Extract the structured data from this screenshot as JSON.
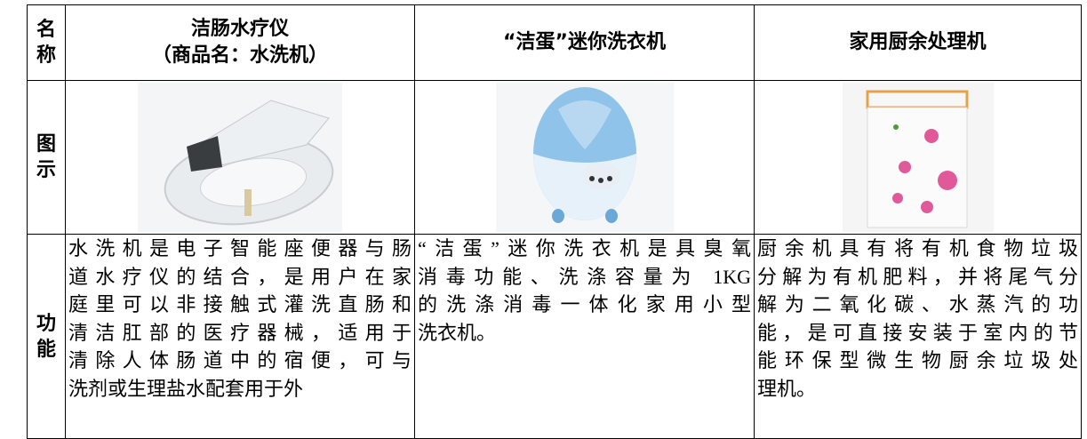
{
  "table": {
    "header": {
      "label": "名称",
      "columns": [
        [
          "洁肠水疗仪",
          "（商品名：水洗机）"
        ],
        [
          "“洁蛋”迷你洗衣机"
        ],
        [
          "家用厨余处理机"
        ]
      ]
    },
    "image_row": {
      "label": "图示"
    },
    "function_row": {
      "label": "功能",
      "cells": [
        [
          "水洗机是电子智能座便器与肠",
          "道水疗仪的结合，是用户在家",
          "庭里可以非接触式灌洗直肠和",
          "清洁肛部的医疗器械，适用于",
          "清除人体肠道中的宿便，可与",
          "洗剂或生理盐水配套用于外"
        ],
        [
          "“洁蛋”迷你洗衣机是具臭氧",
          "消毒功能、洗涤容量为 1KG",
          "的洗涤消毒一体化家用小型",
          "洗衣机。"
        ],
        [
          "厨余机具有将有机食物垃圾",
          "分解为有机肥料，并将尾气分",
          "解为二氧化碳、水蒸汽的功",
          "能，是可直接安装于室内的节",
          "能环保型微生物厨余垃圾处",
          "理机。"
        ]
      ]
    }
  }
}
